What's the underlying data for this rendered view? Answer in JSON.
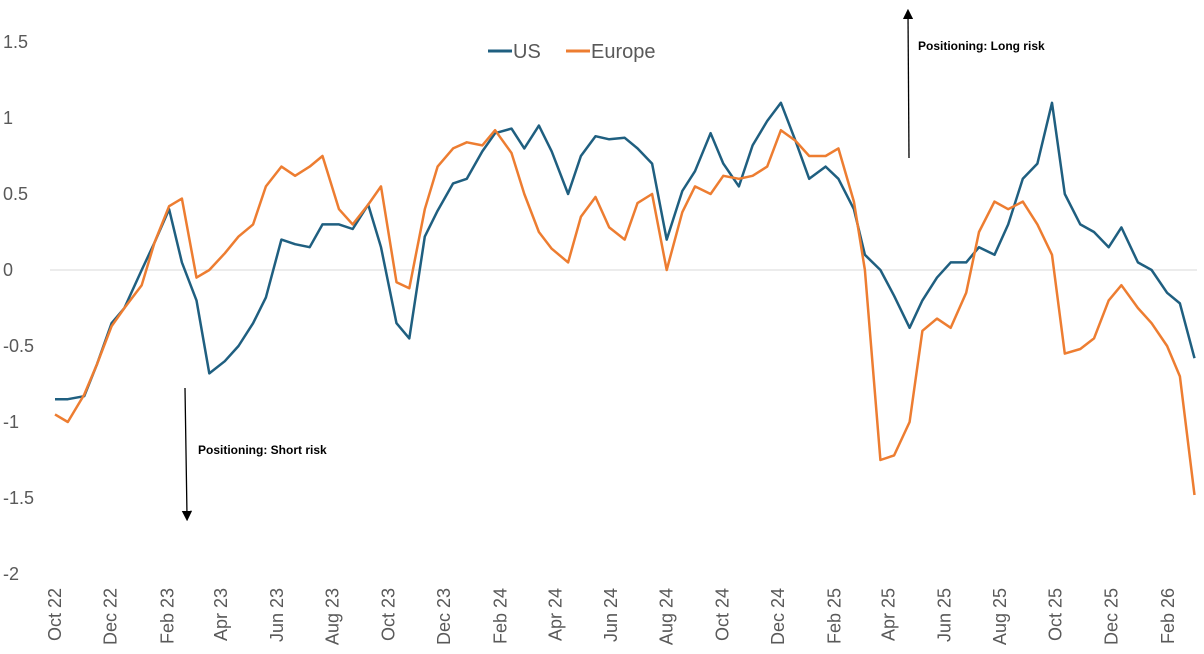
{
  "chart_data": {
    "type": "line",
    "title": "",
    "xlabel": "",
    "ylabel": "",
    "ylim": [
      -2,
      1.5
    ],
    "yticks": [
      1.5,
      1,
      0.5,
      0,
      -0.5,
      -1,
      -1.5,
      -2
    ],
    "ytick_labels": [
      "1.5",
      "1",
      "0.5",
      "0",
      "-0.5",
      "-1",
      "-1.5",
      "-2"
    ],
    "xticks": [
      "2022-10-01",
      "2022-12-01",
      "2023-02-01",
      "2023-04-01",
      "2023-06-01",
      "2023-08-01",
      "2023-10-01",
      "2023-12-01",
      "2024-02-01",
      "2024-04-01",
      "2024-06-01",
      "2024-08-01",
      "2024-10-01",
      "2024-12-01",
      "2025-02-01",
      "2025-04-01",
      "2025-06-01",
      "2025-08-01",
      "2025-10-01",
      "2025-12-01",
      "2026-02-01"
    ],
    "xtick_labels": [
      "Oct 22",
      "Dec 22",
      "Feb 23",
      "Apr 23",
      "Jun 23",
      "Aug 23",
      "Oct 23",
      "Dec 23",
      "Feb 24",
      "Apr 24",
      "Jun 24",
      "Aug 24",
      "Oct 24",
      "Dec 24",
      "Feb 25",
      "Apr 25",
      "Jun 25",
      "Aug 25",
      "Oct 25",
      "Dec 25",
      "Feb 26"
    ],
    "grid": false,
    "zero_line": true,
    "legend": "top-center",
    "x": [
      "2022-10-01",
      "2022-10-15",
      "2022-11-02",
      "2022-11-16",
      "2022-12-02",
      "2022-12-16",
      "2023-01-04",
      "2023-01-18",
      "2023-02-03",
      "2023-02-17",
      "2023-03-05",
      "2023-03-19",
      "2023-04-05",
      "2023-04-20",
      "2023-05-06",
      "2023-05-20",
      "2023-06-06",
      "2023-06-21",
      "2023-07-07",
      "2023-07-21",
      "2023-08-08",
      "2023-08-23",
      "2023-09-09",
      "2023-09-23",
      "2023-10-10",
      "2023-10-24",
      "2023-11-10",
      "2023-11-24",
      "2023-12-11",
      "2023-12-26",
      "2024-01-12",
      "2024-01-26",
      "2024-02-13",
      "2024-02-27",
      "2024-03-14",
      "2024-03-28",
      "2024-04-15",
      "2024-04-29",
      "2024-05-15",
      "2024-05-30",
      "2024-06-16",
      "2024-06-30",
      "2024-07-16",
      "2024-08-01",
      "2024-08-18",
      "2024-09-01",
      "2024-09-18",
      "2024-10-02",
      "2024-10-19",
      "2024-11-03",
      "2024-11-19",
      "2024-12-04",
      "2024-12-20",
      "2025-01-04",
      "2025-01-22",
      "2025-02-05",
      "2025-02-22",
      "2025-03-06",
      "2025-03-23",
      "2025-04-07",
      "2025-04-24",
      "2025-05-08",
      "2025-05-24",
      "2025-06-08",
      "2025-06-25",
      "2025-07-09",
      "2025-07-26",
      "2025-08-10",
      "2025-08-26",
      "2025-09-11",
      "2025-09-27",
      "2025-10-11",
      "2025-10-28",
      "2025-11-12",
      "2025-11-28",
      "2025-12-12",
      "2025-12-30",
      "2026-01-14",
      "2026-01-31",
      "2026-02-14",
      "2026-03-02"
    ],
    "series": [
      {
        "name": "US",
        "color": "#1f5f80",
        "values": [
          -0.85,
          -0.85,
          -0.83,
          -0.62,
          -0.35,
          -0.25,
          0.0,
          0.18,
          0.4,
          0.05,
          -0.2,
          -0.68,
          -0.6,
          -0.5,
          -0.35,
          -0.18,
          0.2,
          0.17,
          0.15,
          0.3,
          0.3,
          0.27,
          0.43,
          0.15,
          -0.35,
          -0.45,
          0.22,
          0.39,
          0.57,
          0.6,
          0.78,
          0.9,
          0.93,
          0.8,
          0.95,
          0.78,
          0.5,
          0.75,
          0.88,
          0.86,
          0.87,
          0.8,
          0.7,
          0.2,
          0.52,
          0.65,
          0.9,
          0.7,
          0.55,
          0.82,
          0.98,
          1.1,
          0.85,
          0.6,
          0.68,
          0.6,
          0.4,
          0.1,
          0.0,
          -0.17,
          -0.38,
          -0.2,
          -0.05,
          0.05,
          0.05,
          0.15,
          0.1,
          0.3,
          0.6,
          0.7,
          1.1,
          0.5,
          0.3,
          0.25,
          0.15,
          0.28,
          0.05,
          0.0,
          -0.15,
          -0.22,
          -0.58
        ]
      },
      {
        "name": "Europe",
        "color": "#ed7d31",
        "values": [
          -0.95,
          -1.0,
          -0.82,
          -0.62,
          -0.37,
          -0.25,
          -0.1,
          0.18,
          0.42,
          0.47,
          -0.05,
          0.0,
          0.11,
          0.22,
          0.3,
          0.55,
          0.68,
          0.62,
          0.68,
          0.75,
          0.4,
          0.3,
          0.43,
          0.55,
          -0.08,
          -0.12,
          0.4,
          0.68,
          0.8,
          0.84,
          0.82,
          0.92,
          0.77,
          0.5,
          0.25,
          0.14,
          0.05,
          0.35,
          0.48,
          0.28,
          0.2,
          0.44,
          0.5,
          0.0,
          0.38,
          0.55,
          0.5,
          0.62,
          0.6,
          0.62,
          0.68,
          0.92,
          0.85,
          0.75,
          0.75,
          0.8,
          0.45,
          0.0,
          -1.25,
          -1.22,
          -1.0,
          -0.4,
          -0.32,
          -0.38,
          -0.15,
          0.25,
          0.45,
          0.4,
          0.45,
          0.3,
          0.1,
          -0.55,
          -0.52,
          -0.45,
          -0.2,
          -0.1,
          -0.25,
          -0.35,
          -0.5,
          -0.7,
          -1.48
        ]
      }
    ],
    "annotations": [
      {
        "text": "Positioning: Long risk",
        "arrow": "up"
      },
      {
        "text": "Positioning: Short risk",
        "arrow": "down"
      }
    ]
  }
}
